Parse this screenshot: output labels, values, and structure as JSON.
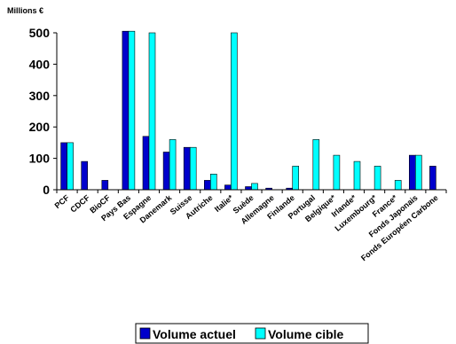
{
  "chart_data": {
    "type": "bar",
    "ylabel": "Millions €",
    "ylim": [
      0,
      500
    ],
    "yticks": [
      "0",
      "100",
      "200",
      "300",
      "400",
      "500"
    ],
    "categories": [
      "PCF",
      "CDCF",
      "BioCF",
      "Pays Bas",
      "Espagne",
      "Danemark",
      "Suisse",
      "Autriche",
      "Italie*",
      "Suède",
      "Allemagne",
      "Finlande",
      "Portugal",
      "Belgique*",
      "Irlande*",
      "Luxembourg*",
      "France*",
      "Fonds Japonais",
      "Fonds Européen Carbone"
    ],
    "series": [
      {
        "name": "Volume actuel",
        "color": "#0000cc",
        "values": [
          150,
          90,
          30,
          505,
          170,
          120,
          135,
          30,
          15,
          10,
          5,
          5,
          0,
          0,
          0,
          0,
          0,
          110,
          75
        ]
      },
      {
        "name": "Volume cible",
        "color": "#00ffff",
        "values": [
          150,
          0,
          0,
          505,
          500,
          160,
          135,
          50,
          500,
          20,
          0,
          75,
          160,
          110,
          90,
          75,
          30,
          110,
          0
        ]
      }
    ],
    "grid": false,
    "legend_position": "bottom"
  }
}
